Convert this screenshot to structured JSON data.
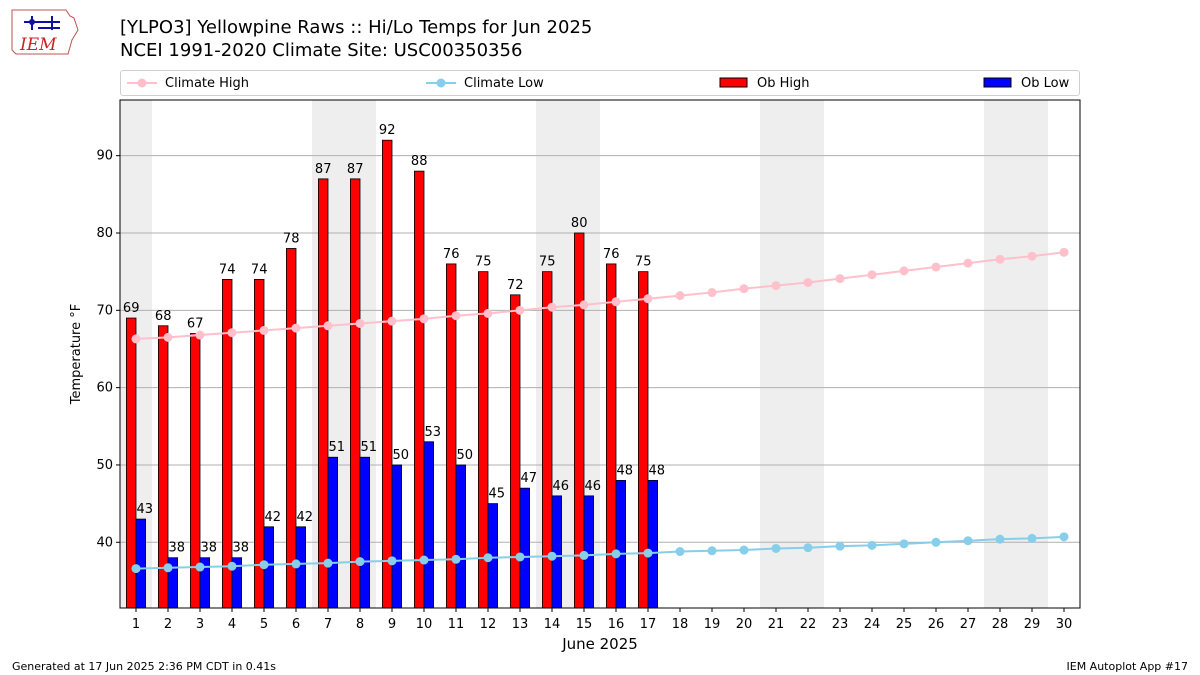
{
  "header": {
    "title_line1": "[YLPO3] Yellowpine Raws :: Hi/Lo Temps for Jun 2025",
    "title_line2": "NCEI 1991-2020 Climate Site: USC00350356"
  },
  "logo": {
    "text": "IEM"
  },
  "legend": {
    "climate_high": "Climate High",
    "climate_low": "Climate Low",
    "ob_high": "Ob High",
    "ob_low": "Ob Low"
  },
  "footer": {
    "left": "Generated at 17 Jun 2025 2:36 PM CDT in 0.41s",
    "right": "IEM Autoplot App #17"
  },
  "colors": {
    "ob_high": "#ff0000",
    "ob_low": "#0000ff",
    "climate_high": "#ffc0cb",
    "climate_low": "#87ceeb",
    "weekend_shade": "#eeeeee",
    "grid": "#b0b0b0"
  },
  "chart_data": {
    "type": "bar",
    "title": "[YLPO3] Yellowpine Raws :: Hi/Lo Temps for Jun 2025",
    "xlabel": "June 2025",
    "ylabel": "Temperature °F",
    "xlim": [
      0.5,
      30.5
    ],
    "ylim": [
      31.5,
      97.2
    ],
    "yticks": [
      40,
      50,
      60,
      70,
      80,
      90
    ],
    "grid": true,
    "legend_position": "top",
    "days": [
      1,
      2,
      3,
      4,
      5,
      6,
      7,
      8,
      9,
      10,
      11,
      12,
      13,
      14,
      15,
      16,
      17,
      18,
      19,
      20,
      21,
      22,
      23,
      24,
      25,
      26,
      27,
      28,
      29,
      30
    ],
    "weekend_days": [
      1,
      7,
      8,
      14,
      15,
      21,
      22,
      28,
      29
    ],
    "series": [
      {
        "name": "Ob High",
        "kind": "bar",
        "values": [
          69,
          68,
          67,
          74,
          74,
          78,
          87,
          87,
          92,
          88,
          76,
          75,
          72,
          75,
          80,
          76,
          75
        ]
      },
      {
        "name": "Ob Low",
        "kind": "bar",
        "values": [
          43,
          38,
          38,
          38,
          42,
          42,
          51,
          51,
          50,
          53,
          50,
          45,
          47,
          46,
          46,
          48,
          48
        ]
      },
      {
        "name": "Climate High",
        "kind": "line",
        "values": [
          66.3,
          66.5,
          66.8,
          67.1,
          67.4,
          67.7,
          68.0,
          68.3,
          68.6,
          68.9,
          69.3,
          69.6,
          70.0,
          70.4,
          70.7,
          71.1,
          71.5,
          71.9,
          72.3,
          72.8,
          73.2,
          73.6,
          74.1,
          74.6,
          75.1,
          75.6,
          76.1,
          76.6,
          77.0,
          77.5
        ]
      },
      {
        "name": "Climate Low",
        "kind": "line",
        "values": [
          36.6,
          36.7,
          36.8,
          36.9,
          37.1,
          37.2,
          37.3,
          37.5,
          37.6,
          37.7,
          37.8,
          38.0,
          38.1,
          38.2,
          38.3,
          38.5,
          38.6,
          38.8,
          38.9,
          39.0,
          39.2,
          39.3,
          39.5,
          39.6,
          39.8,
          40.0,
          40.2,
          40.4,
          40.5,
          40.7
        ]
      }
    ]
  }
}
